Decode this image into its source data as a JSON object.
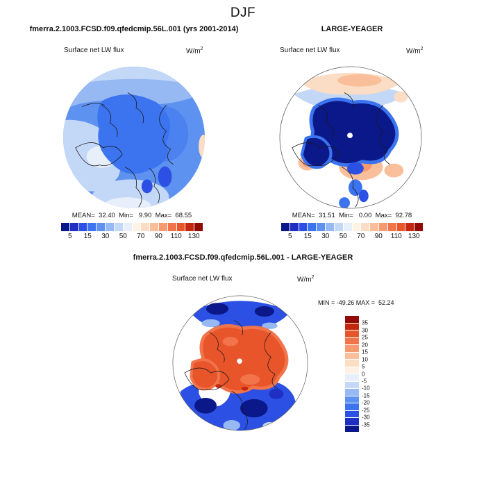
{
  "title": "DJF",
  "colors": {
    "background": "#ffffff",
    "coastline": "#1a1a1a",
    "palette_blue_to_red": [
      "#0b1889",
      "#1f2fc4",
      "#2b50e3",
      "#3c74f0",
      "#5e92f0",
      "#96b8f3",
      "#c3d7f7",
      "#e7effb",
      "#fdf2e4",
      "#fbdcc4",
      "#f9bf9b",
      "#f79a70",
      "#f2744a",
      "#e8552b",
      "#c3270e",
      "#920a04"
    ]
  },
  "panels": {
    "model": {
      "header": "fmerra.2.1003.FCSD.f09.qfedcmip.56L.001 (yrs 2001-2014)",
      "field_label": "Surface net LW flux",
      "units_base": "W/m",
      "units_exp": "2",
      "stats": "MEAN=  32.40  Min=   9.90  Max=  68.55",
      "colorbar_ticks": [
        "5",
        "15",
        "30",
        "50",
        "70",
        "90",
        "110",
        "130"
      ]
    },
    "obs": {
      "header": "LARGE-YEAGER",
      "field_label": "Surface net LW flux",
      "units_base": "W/m",
      "units_exp": "2",
      "stats": "MEAN=  31.51  Min=   0.00  Max=  92.78",
      "colorbar_ticks": [
        "5",
        "15",
        "30",
        "50",
        "70",
        "90",
        "110",
        "130"
      ]
    },
    "diff": {
      "header": "fmerra.2.1003.FCSD.f09.qfedcmip.56L.001 - LARGE-YEAGER",
      "field_label": "Surface net LW flux",
      "units_base": "W/m",
      "units_exp": "2",
      "minmax": "MIN = -49.26 MAX =  52.24",
      "colorbar_ticks": [
        "35",
        "30",
        "25",
        "20",
        "15",
        "10",
        "5",
        "0",
        "-5",
        "-10",
        "-15",
        "-20",
        "-25",
        "-30",
        "-35"
      ]
    }
  },
  "chart_data": [
    {
      "type": "heatmap",
      "subtype": "filled-contour-map",
      "projection": "north-polar-stereographic",
      "season": "DJF",
      "title": "fmerra.2.1003.FCSD.f09.qfedcmip.56L.001 (yrs 2001-2014)",
      "variable": "Surface net LW flux",
      "units": "W/m2",
      "stats": {
        "mean": 32.4,
        "min": 9.9,
        "max": 68.55
      },
      "contour_levels": [
        5,
        10,
        15,
        20,
        30,
        40,
        50,
        60,
        70,
        80,
        90,
        100,
        110,
        120,
        130
      ],
      "colorbar_tick_labels": [
        5,
        15,
        30,
        50,
        70,
        90,
        110,
        130
      ],
      "colorbar_orientation": "horizontal",
      "legend_position": "bottom",
      "color_scheme": "blue-to-red, 16 classes"
    },
    {
      "type": "heatmap",
      "subtype": "filled-contour-map",
      "projection": "north-polar-stereographic",
      "season": "DJF",
      "title": "LARGE-YEAGER",
      "variable": "Surface net LW flux",
      "units": "W/m2",
      "stats": {
        "mean": 31.51,
        "min": 0.0,
        "max": 92.78
      },
      "contour_levels": [
        5,
        10,
        15,
        20,
        30,
        40,
        50,
        60,
        70,
        80,
        90,
        100,
        110,
        120,
        130
      ],
      "colorbar_tick_labels": [
        5,
        15,
        30,
        50,
        70,
        90,
        110,
        130
      ],
      "colorbar_orientation": "horizontal",
      "legend_position": "bottom",
      "color_scheme": "blue-to-red, 16 classes"
    },
    {
      "type": "heatmap",
      "subtype": "filled-contour-difference-map",
      "projection": "north-polar-stereographic",
      "season": "DJF",
      "title": "fmerra.2.1003.FCSD.f09.qfedcmip.56L.001 - LARGE-YEAGER",
      "variable": "Surface net LW flux",
      "units": "W/m2",
      "stats": {
        "min": -49.26,
        "max": 52.24
      },
      "contour_levels": [
        -35,
        -30,
        -25,
        -20,
        -15,
        -10,
        -5,
        0,
        5,
        10,
        15,
        20,
        25,
        30,
        35
      ],
      "colorbar_tick_labels": [
        35,
        30,
        25,
        20,
        15,
        10,
        5,
        0,
        -5,
        -10,
        -15,
        -20,
        -25,
        -30,
        -35
      ],
      "colorbar_orientation": "vertical",
      "legend_position": "right",
      "color_scheme": "red-to-blue, 16 classes"
    }
  ]
}
